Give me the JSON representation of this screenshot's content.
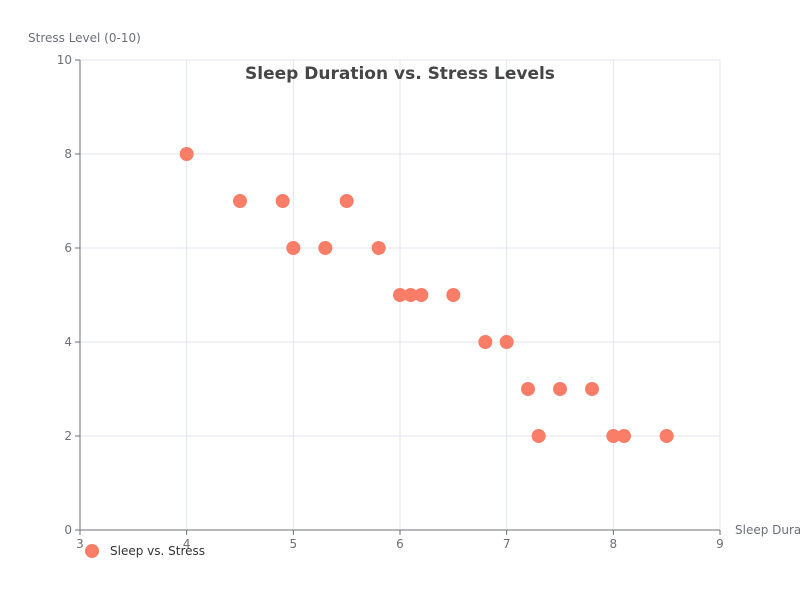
{
  "chart_data": {
    "type": "scatter",
    "title": "Sleep Duration vs. Stress Levels",
    "xlabel": "Sleep Duration (hours)",
    "ylabel": "Stress Level (0-10)",
    "xlim": [
      3,
      9
    ],
    "ylim": [
      0,
      10
    ],
    "x_ticks": [
      "3",
      "4",
      "5",
      "6",
      "7",
      "8",
      "9"
    ],
    "y_ticks": [
      "0",
      "2",
      "4",
      "6",
      "8",
      "10"
    ],
    "grid": true,
    "legend_position": "bottom-left",
    "series": [
      {
        "name": "Sleep vs. Stress",
        "color": "#fa7d68",
        "points": [
          {
            "x": 4.0,
            "y": 8
          },
          {
            "x": 4.5,
            "y": 7
          },
          {
            "x": 4.9,
            "y": 7
          },
          {
            "x": 5.0,
            "y": 6
          },
          {
            "x": 5.3,
            "y": 6
          },
          {
            "x": 5.5,
            "y": 7
          },
          {
            "x": 5.8,
            "y": 6
          },
          {
            "x": 6.0,
            "y": 5
          },
          {
            "x": 6.1,
            "y": 5
          },
          {
            "x": 6.2,
            "y": 5
          },
          {
            "x": 6.5,
            "y": 5
          },
          {
            "x": 6.8,
            "y": 4
          },
          {
            "x": 7.0,
            "y": 4
          },
          {
            "x": 7.2,
            "y": 3
          },
          {
            "x": 7.3,
            "y": 2
          },
          {
            "x": 7.5,
            "y": 3
          },
          {
            "x": 7.8,
            "y": 3
          },
          {
            "x": 8.0,
            "y": 2
          },
          {
            "x": 8.1,
            "y": 2
          },
          {
            "x": 8.5,
            "y": 2
          }
        ]
      }
    ]
  }
}
